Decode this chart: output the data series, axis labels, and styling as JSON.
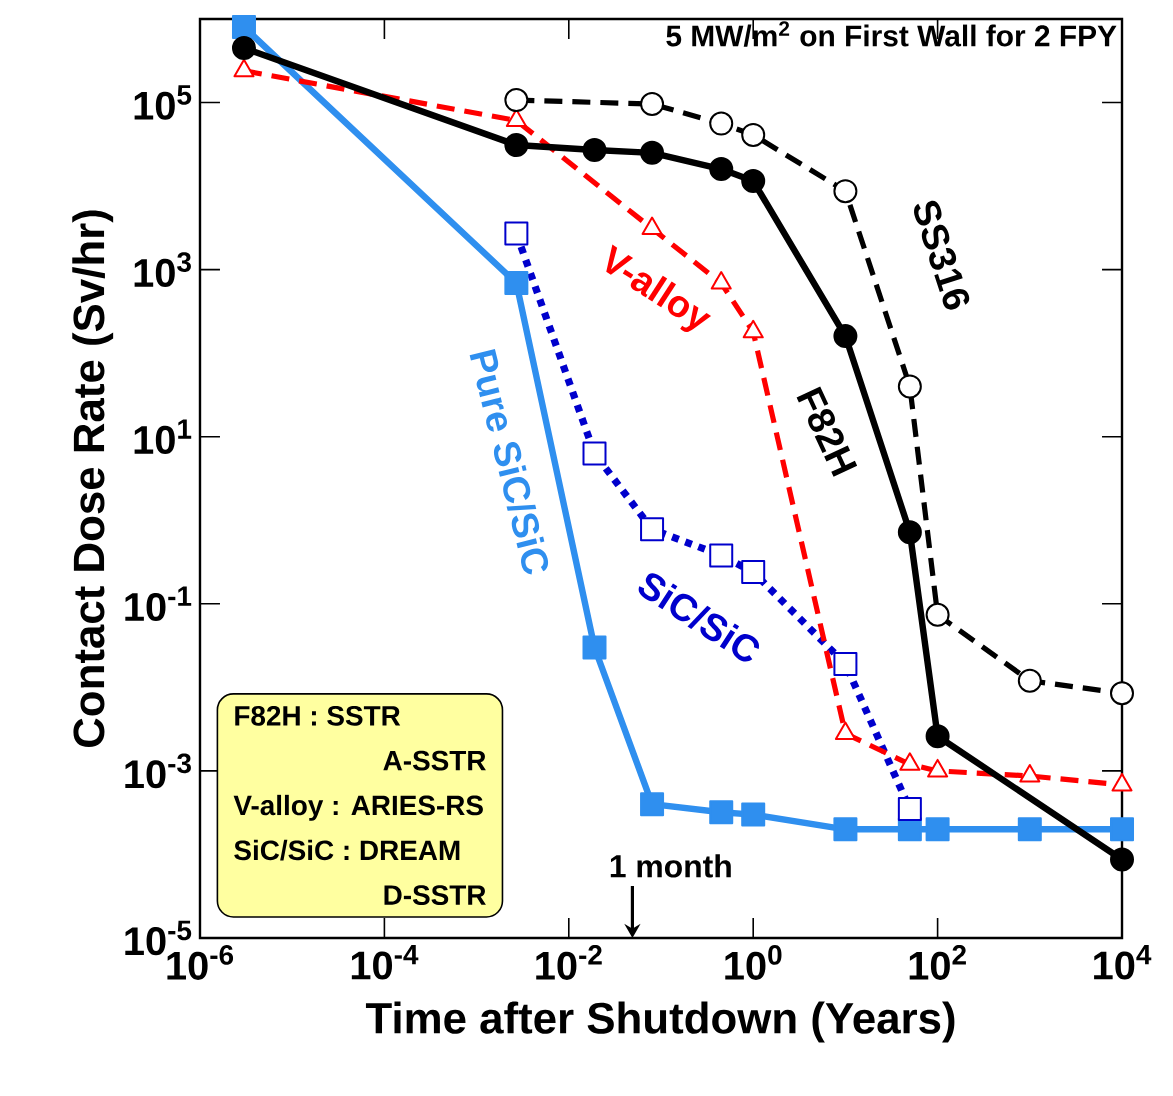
{
  "chart_data": {
    "type": "line",
    "title": "5 MW/m$^{2}$ on First Wall for 2 FPY",
    "xlabel": "Time after Shutdown (Years)",
    "ylabel": "Contact Dose Rate (Sv/hr)",
    "log": "xy",
    "xlim": [
      1e-06,
      10000
    ],
    "ylim": [
      1e-05,
      1000000
    ],
    "xticks": [
      {
        "value": 1e-06,
        "label": "10$^{-6}$"
      },
      {
        "value": 0.0001,
        "label": "10$^{-4}$"
      },
      {
        "value": 0.01,
        "label": "10$^{-2}$"
      },
      {
        "value": 1,
        "label": "10$^{0}$"
      },
      {
        "value": 100,
        "label": "10$^{2}$"
      },
      {
        "value": 10000,
        "label": "10$^{4}$"
      }
    ],
    "yticks": [
      {
        "value": 1e-05,
        "label": "10$^{-5}$"
      },
      {
        "value": 0.001,
        "label": "10$^{-3}$"
      },
      {
        "value": 0.1,
        "label": "10$^{-1}$"
      },
      {
        "value": 10,
        "label": "10$^{1}$"
      },
      {
        "value": 1000,
        "label": "10$^{3}$"
      },
      {
        "value": 100000,
        "label": "10$^{5}$"
      }
    ],
    "series": [
      {
        "name": "SS316",
        "color": "#000000",
        "line_style": "dashed",
        "marker": "circle",
        "x": [
          0.0027,
          0.08,
          0.45,
          1,
          10,
          50,
          100,
          1000,
          10000
        ],
        "values": [
          107000,
          96000,
          56000,
          41000,
          8700,
          40,
          0.074,
          0.012,
          0.0085
        ]
      },
      {
        "name": "F82H",
        "color": "#000000",
        "line_style": "solid",
        "marker": "circle",
        "x": [
          3e-06,
          0.0027,
          0.019,
          0.08,
          0.45,
          1,
          10,
          50,
          100,
          1000,
          10000
        ],
        "values": [
          450000,
          31000,
          27000,
          25000,
          16000,
          11500,
          160,
          0.72,
          0.0026,
          null,
          8.7e-05
        ]
      },
      {
        "name": "V-alloy",
        "color": "#ff0000",
        "line_style": "dashed",
        "marker": "triangle",
        "x": [
          3e-06,
          0.0027,
          0.08,
          0.45,
          1,
          10,
          50,
          100,
          1000,
          10000
        ],
        "values": [
          240000,
          61000,
          3100,
          690,
          180,
          0.0028,
          0.0012,
          0.001,
          0.00087,
          0.00068
        ]
      },
      {
        "name": "SiC/SiC",
        "color": "#0000cc",
        "line_style": "dotted",
        "marker": "square",
        "x": [
          0.0027,
          0.019,
          0.08,
          0.45,
          1,
          10,
          50
        ],
        "values": [
          2700,
          6.3,
          0.78,
          0.38,
          0.24,
          0.019,
          0.00035
        ]
      },
      {
        "name": "Pure SiC/SiC",
        "color": "#2f8fef",
        "line_style": "solid",
        "marker": "square",
        "x": [
          3e-06,
          0.0027,
          0.019,
          0.08,
          0.45,
          1,
          10,
          50,
          100,
          1000,
          10000
        ],
        "values": [
          800000,
          690,
          0.03,
          0.0004,
          0.00032,
          0.0003,
          0.0002,
          0.0002,
          0.0002,
          0.0002,
          0.0002
        ]
      }
    ],
    "annotations": [
      "F82H : SSTR",
      "A-SSTR",
      "V-alloy : ARIES-RS",
      "SiC/SiC : DREAM",
      "D-SSTR",
      "1 month"
    ]
  }
}
